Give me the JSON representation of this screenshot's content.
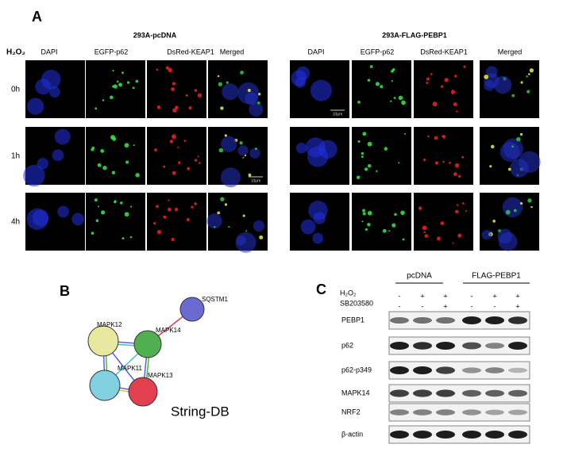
{
  "panel_a": {
    "label": "A",
    "treatment_label": "H₂O₂",
    "groups": [
      {
        "title": "293A-pcDNA",
        "channels": [
          "DAPI",
          "EGFP-p62",
          "DsRed-KEAP1",
          "Merged"
        ]
      },
      {
        "title": "293A-FLAG-PEBP1",
        "channels": [
          "DAPI",
          "EGFP-p62",
          "DsRed-KEAP1",
          "Merged"
        ]
      }
    ],
    "timepoints": [
      "0h",
      "1h",
      "4h"
    ],
    "scale_bar": "10μm"
  },
  "panel_b": {
    "label": "B",
    "nodes": [
      "SQSTM1",
      "MAPK12",
      "MAPK14",
      "MAPK11",
      "MAPK13"
    ],
    "source": "String-DB"
  },
  "panel_c": {
    "label": "C",
    "groups": [
      "pcDNA",
      "FLAG-PEBP1"
    ],
    "treatments": [
      {
        "name": "H₂O₂",
        "signs": [
          "-",
          "+",
          "+",
          "-",
          "+",
          "+"
        ]
      },
      {
        "name": "SB203580",
        "signs": [
          "-",
          "-",
          "+",
          "-",
          "-",
          "+"
        ]
      }
    ],
    "proteins": [
      "PEBP1",
      "p62",
      "p62-p349",
      "MAPK14",
      "NRF2",
      "β-actin"
    ]
  }
}
